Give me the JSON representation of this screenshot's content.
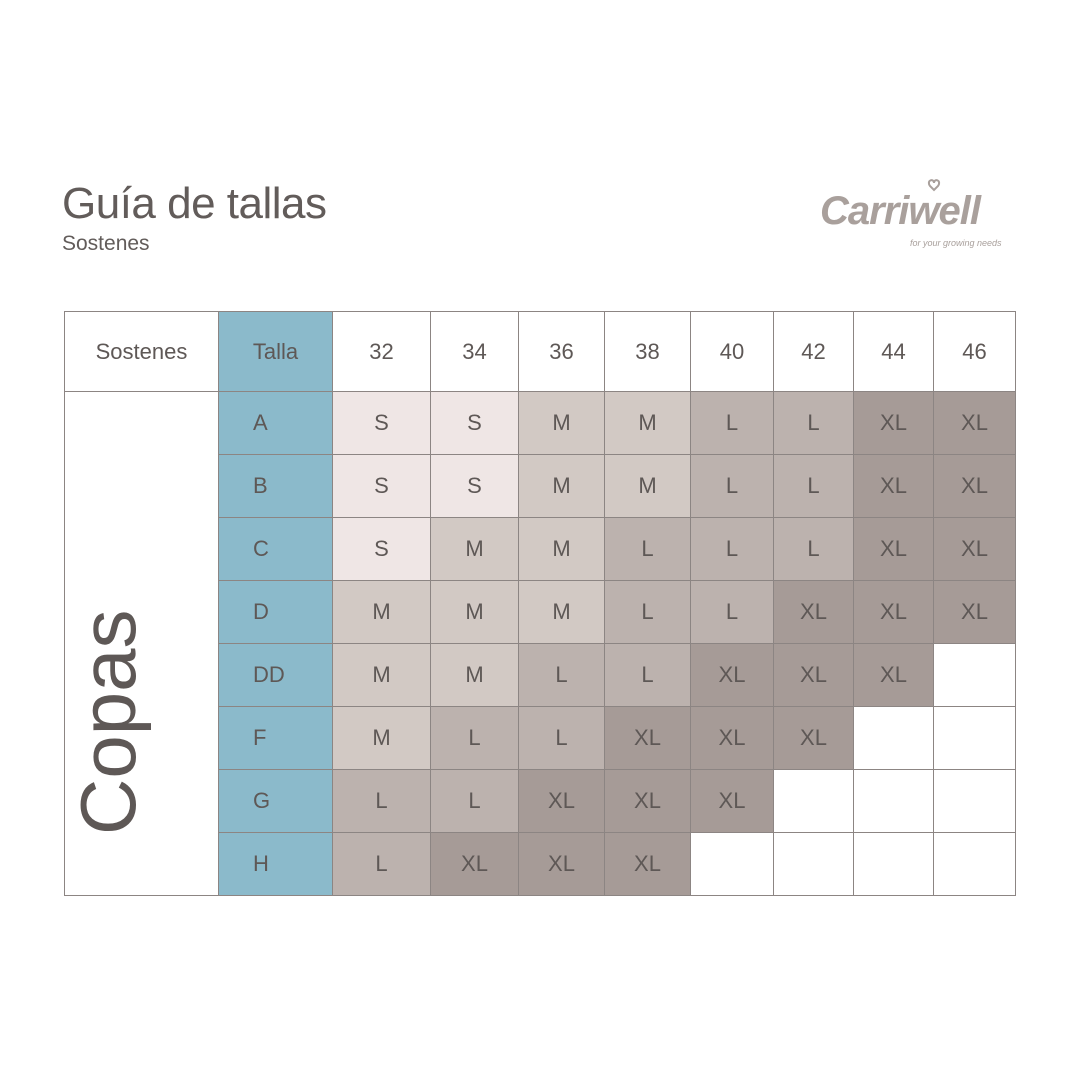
{
  "title": "Guía de tallas",
  "subtitle": "Sostenes",
  "logo": {
    "text": "Carriwell",
    "tagline": "for your growing needs"
  },
  "colors": {
    "S": "#efe6e5",
    "M": "#d2c9c4",
    "L": "#bcb2ae",
    "XL": "#a69b97",
    "talla": "#8bbacb",
    "empty": "#ffffff"
  },
  "table": {
    "corner": "Sostenes",
    "talla_label": "Talla",
    "side_label": "Copas",
    "band_sizes": [
      "32",
      "34",
      "36",
      "38",
      "40",
      "42",
      "44",
      "46"
    ],
    "rows": [
      {
        "cup": "A",
        "sizes": [
          "S",
          "S",
          "M",
          "M",
          "L",
          "L",
          "XL",
          "XL"
        ]
      },
      {
        "cup": "B",
        "sizes": [
          "S",
          "S",
          "M",
          "M",
          "L",
          "L",
          "XL",
          "XL"
        ]
      },
      {
        "cup": "C",
        "sizes": [
          "S",
          "M",
          "M",
          "L",
          "L",
          "L",
          "XL",
          "XL"
        ]
      },
      {
        "cup": "D",
        "sizes": [
          "M",
          "M",
          "M",
          "L",
          "L",
          "XL",
          "XL",
          "XL"
        ]
      },
      {
        "cup": "DD",
        "sizes": [
          "M",
          "M",
          "L",
          "L",
          "XL",
          "XL",
          "XL",
          ""
        ]
      },
      {
        "cup": "F",
        "sizes": [
          "M",
          "L",
          "L",
          "XL",
          "XL",
          "XL",
          "",
          ""
        ]
      },
      {
        "cup": "G",
        "sizes": [
          "L",
          "L",
          "XL",
          "XL",
          "XL",
          "",
          "",
          ""
        ]
      },
      {
        "cup": "H",
        "sizes": [
          "L",
          "XL",
          "XL",
          "XL",
          "",
          "",
          "",
          ""
        ]
      }
    ]
  }
}
